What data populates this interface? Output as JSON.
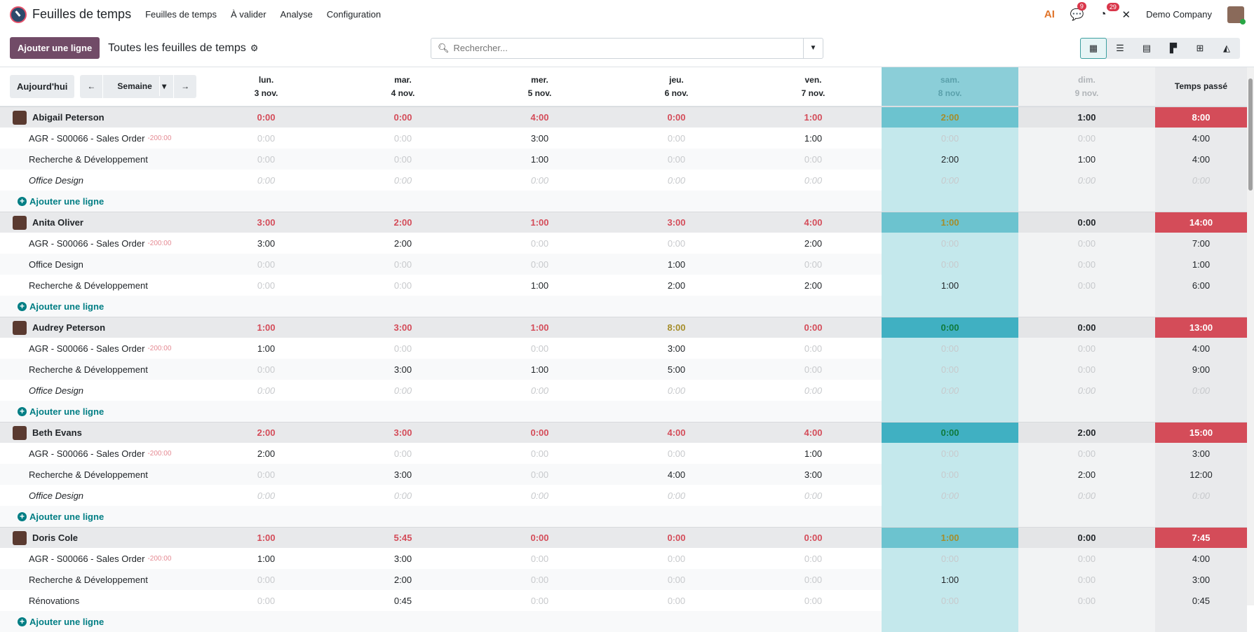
{
  "nav": {
    "app_title": "Feuilles de temps",
    "menus": [
      "Feuilles de temps",
      "À valider",
      "Analyse",
      "Configuration"
    ],
    "messages_count": "9",
    "activities_count": "29",
    "company": "Demo Company",
    "ai_label": "AI"
  },
  "controls": {
    "add_line": "Ajouter une ligne",
    "view_title": "Toutes les feuilles de temps",
    "search_placeholder": "Rechercher...",
    "views": [
      "grid",
      "list",
      "calendar",
      "kanban",
      "pivot",
      "graph"
    ]
  },
  "header": {
    "today": "Aujourd'hui",
    "period": "Semaine",
    "days": [
      {
        "d": "lun.",
        "date": "3 nov."
      },
      {
        "d": "mar.",
        "date": "4 nov."
      },
      {
        "d": "mer.",
        "date": "5 nov."
      },
      {
        "d": "jeu.",
        "date": "6 nov."
      },
      {
        "d": "ven.",
        "date": "7 nov."
      },
      {
        "d": "sam.",
        "date": "8 nov."
      },
      {
        "d": "dim.",
        "date": "9 nov."
      }
    ],
    "total": "Temps passé"
  },
  "add_line_label": "Ajouter une ligne",
  "colors": {
    "accent": "#714b67",
    "teal": "#017e84",
    "danger": "#d44c59"
  },
  "employees": [
    {
      "name": "Abigail Peterson",
      "days": [
        "0:00",
        "0:00",
        "4:00",
        "0:00",
        "1:00",
        "2:00",
        "1:00"
      ],
      "total": "8:00",
      "lines": [
        {
          "name": "AGR - S00066 - Sales Order",
          "remaining": "-200:00",
          "days": [
            "0:00",
            "0:00",
            "3:00",
            "0:00",
            "1:00",
            "0:00",
            "0:00"
          ],
          "total": "4:00"
        },
        {
          "name": "Recherche & Développement",
          "days": [
            "0:00",
            "0:00",
            "1:00",
            "0:00",
            "0:00",
            "2:00",
            "1:00"
          ],
          "total": "4:00"
        },
        {
          "name": "Office Design",
          "italic": true,
          "days": [
            "0:00",
            "0:00",
            "0:00",
            "0:00",
            "0:00",
            "0:00",
            "0:00"
          ],
          "total": "0:00"
        }
      ]
    },
    {
      "name": "Anita Oliver",
      "days": [
        "3:00",
        "2:00",
        "1:00",
        "3:00",
        "4:00",
        "1:00",
        "0:00"
      ],
      "total": "14:00",
      "lines": [
        {
          "name": "AGR - S00066 - Sales Order",
          "remaining": "-200:00",
          "days": [
            "3:00",
            "2:00",
            "0:00",
            "0:00",
            "2:00",
            "0:00",
            "0:00"
          ],
          "total": "7:00"
        },
        {
          "name": "Office Design",
          "days": [
            "0:00",
            "0:00",
            "0:00",
            "1:00",
            "0:00",
            "0:00",
            "0:00"
          ],
          "total": "1:00"
        },
        {
          "name": "Recherche & Développement",
          "days": [
            "0:00",
            "0:00",
            "1:00",
            "2:00",
            "2:00",
            "1:00",
            "0:00"
          ],
          "total": "6:00"
        }
      ]
    },
    {
      "name": "Audrey Peterson",
      "days": [
        "1:00",
        "3:00",
        "1:00",
        "8:00",
        "0:00",
        "0:00",
        "0:00"
      ],
      "total": "13:00",
      "lines": [
        {
          "name": "AGR - S00066 - Sales Order",
          "remaining": "-200:00",
          "days": [
            "1:00",
            "0:00",
            "0:00",
            "3:00",
            "0:00",
            "0:00",
            "0:00"
          ],
          "total": "4:00"
        },
        {
          "name": "Recherche & Développement",
          "days": [
            "0:00",
            "3:00",
            "1:00",
            "5:00",
            "0:00",
            "0:00",
            "0:00"
          ],
          "total": "9:00"
        },
        {
          "name": "Office Design",
          "italic": true,
          "days": [
            "0:00",
            "0:00",
            "0:00",
            "0:00",
            "0:00",
            "0:00",
            "0:00"
          ],
          "total": "0:00"
        }
      ]
    },
    {
      "name": "Beth Evans",
      "days": [
        "2:00",
        "3:00",
        "0:00",
        "4:00",
        "4:00",
        "0:00",
        "2:00"
      ],
      "total": "15:00",
      "lines": [
        {
          "name": "AGR - S00066 - Sales Order",
          "remaining": "-200:00",
          "days": [
            "2:00",
            "0:00",
            "0:00",
            "0:00",
            "1:00",
            "0:00",
            "0:00"
          ],
          "total": "3:00"
        },
        {
          "name": "Recherche & Développement",
          "days": [
            "0:00",
            "3:00",
            "0:00",
            "4:00",
            "3:00",
            "0:00",
            "2:00"
          ],
          "total": "12:00"
        },
        {
          "name": "Office Design",
          "italic": true,
          "days": [
            "0:00",
            "0:00",
            "0:00",
            "0:00",
            "0:00",
            "0:00",
            "0:00"
          ],
          "total": "0:00"
        }
      ]
    },
    {
      "name": "Doris Cole",
      "days": [
        "1:00",
        "5:45",
        "0:00",
        "0:00",
        "0:00",
        "1:00",
        "0:00"
      ],
      "total": "7:45",
      "lines": [
        {
          "name": "AGR - S00066 - Sales Order",
          "remaining": "-200:00",
          "days": [
            "1:00",
            "3:00",
            "0:00",
            "0:00",
            "0:00",
            "0:00",
            "0:00"
          ],
          "total": "4:00"
        },
        {
          "name": "Recherche & Développement",
          "days": [
            "0:00",
            "2:00",
            "0:00",
            "0:00",
            "0:00",
            "1:00",
            "0:00"
          ],
          "total": "3:00"
        },
        {
          "name": "Rénovations",
          "days": [
            "0:00",
            "0:45",
            "0:00",
            "0:00",
            "0:00",
            "0:00",
            "0:00"
          ],
          "total": "0:45"
        }
      ]
    }
  ]
}
